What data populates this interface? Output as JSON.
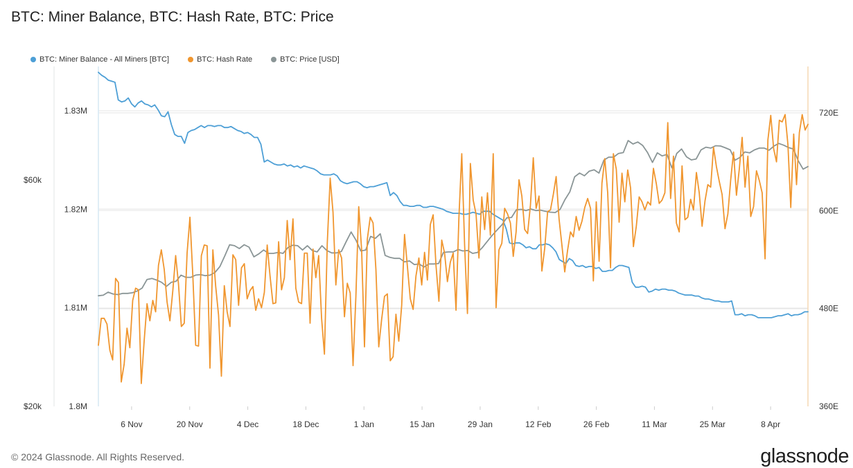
{
  "title": "BTC: Miner Balance, BTC: Hash Rate, BTC: Price",
  "footer": {
    "copyright": "© 2024 Glassnode. All Rights Reserved.",
    "brand": "glassnode"
  },
  "colors": {
    "miner_balance": "#4d9fd6",
    "hash_rate": "#f0962f",
    "price": "#8a9596",
    "grid": "#e6e6e6",
    "axis_text": "#333333"
  },
  "chart_data": {
    "type": "line",
    "title": "BTC: Miner Balance, BTC: Hash Rate, BTC: Price",
    "x_ticks": [
      "6 Nov",
      "20 Nov",
      "4 Dec",
      "18 Dec",
      "1 Jan",
      "15 Jan",
      "29 Jan",
      "12 Feb",
      "26 Feb",
      "11 Mar",
      "25 Mar",
      "8 Apr"
    ],
    "x_range": [
      "2023-10-29",
      "2024-04-17"
    ],
    "axes": {
      "balance": {
        "side": "left-inner",
        "ticks": [
          "1.8M",
          "1.81M",
          "1.82M",
          "1.83M"
        ],
        "ylim": [
          1.8,
          1.8345
        ],
        "unit": "M BTC"
      },
      "price": {
        "side": "left-outer",
        "scale": "log",
        "ticks": [
          "$20k",
          "$60k"
        ],
        "ylim": [
          20000,
          104000
        ]
      },
      "hash_rate": {
        "side": "right",
        "ticks": [
          "360E",
          "480E",
          "600E",
          "720E"
        ],
        "ylim": [
          360,
          777
        ]
      }
    },
    "legend_position": "top-left",
    "series": [
      {
        "name": "BTC: Miner Balance - All Miners [BTC]",
        "key": "miner_balance",
        "axis": "balance",
        "values": [
          1.8339,
          1.8336,
          1.8334,
          1.8331,
          1.833,
          1.8329,
          1.8311,
          1.8309,
          1.831,
          1.8313,
          1.8307,
          1.8304,
          1.8308,
          1.831,
          1.8307,
          1.8306,
          1.8304,
          1.8306,
          1.8301,
          1.8295,
          1.8294,
          1.8299,
          1.8286,
          1.8276,
          1.8274,
          1.8274,
          1.8267,
          1.8278,
          1.828,
          1.8281,
          1.8283,
          1.8285,
          1.8283,
          1.8285,
          1.8285,
          1.8284,
          1.8285,
          1.8285,
          1.8283,
          1.8283,
          1.8284,
          1.8282,
          1.828,
          1.8279,
          1.8277,
          1.8278,
          1.8276,
          1.8273,
          1.8273,
          1.8266,
          1.8248,
          1.825,
          1.8248,
          1.8246,
          1.8245,
          1.8245,
          1.8246,
          1.8244,
          1.8245,
          1.8243,
          1.8244,
          1.8242,
          1.8244,
          1.8243,
          1.8242,
          1.8241,
          1.8239,
          1.8236,
          1.8235,
          1.8235,
          1.8235,
          1.8236,
          1.8234,
          1.8229,
          1.8227,
          1.8226,
          1.8227,
          1.8228,
          1.8228,
          1.8226,
          1.8223,
          1.8222,
          1.8223,
          1.8223,
          1.8224,
          1.8225,
          1.8226,
          1.8227,
          1.8214,
          1.8217,
          1.8214,
          1.8208,
          1.8204,
          1.8204,
          1.8203,
          1.8203,
          1.8204,
          1.8204,
          1.8202,
          1.8202,
          1.8203,
          1.8203,
          1.8202,
          1.8201,
          1.82,
          1.8198,
          1.8197,
          1.8196,
          1.8196,
          1.8196,
          1.8195,
          1.8195,
          1.8196,
          1.8197,
          1.8196,
          1.8195,
          1.8198,
          1.8198,
          1.8198,
          1.8195,
          1.8193,
          1.8191,
          1.8189,
          1.818,
          1.8166,
          1.8165,
          1.8166,
          1.8166,
          1.8164,
          1.8161,
          1.8162,
          1.816,
          1.816,
          1.8164,
          1.8164,
          1.8165,
          1.8164,
          1.8161,
          1.8157,
          1.8149,
          1.8147,
          1.8145,
          1.815,
          1.8148,
          1.8143,
          1.8142,
          1.8143,
          1.8141,
          1.8142,
          1.8142,
          1.814,
          1.8141,
          1.8137,
          1.8137,
          1.8138,
          1.8138,
          1.8141,
          1.8143,
          1.8143,
          1.8142,
          1.8141,
          1.8126,
          1.8121,
          1.8121,
          1.8122,
          1.8121,
          1.8116,
          1.8117,
          1.8119,
          1.8118,
          1.8119,
          1.8119,
          1.8118,
          1.8118,
          1.8117,
          1.8115,
          1.8114,
          1.8113,
          1.8113,
          1.8113,
          1.8112,
          1.8112,
          1.811,
          1.8109,
          1.8109,
          1.8108,
          1.8107,
          1.8107,
          1.8106,
          1.8106,
          1.8106,
          1.8107,
          1.8093,
          1.8093,
          1.8094,
          1.8092,
          1.8093,
          1.8093,
          1.8092,
          1.809,
          1.809,
          1.809,
          1.809,
          1.809,
          1.8091,
          1.8092,
          1.8092,
          1.8093,
          1.8094,
          1.8092,
          1.8093,
          1.8093,
          1.8094,
          1.8096,
          1.8096
        ]
      },
      {
        "name": "BTC: Hash Rate",
        "key": "hash_rate",
        "axis": "hash_rate",
        "values": [
          435,
          468,
          468,
          461,
          429,
          417,
          517,
          512,
          390,
          412,
          456,
          432,
          490,
          505,
          503,
          388,
          441,
          486,
          465,
          490,
          476,
          533,
          552,
          528,
          488,
          465,
          502,
          545,
          510,
          458,
          462,
          548,
          592,
          520,
          435,
          434,
          545,
          558,
          557,
          407,
          552,
          507,
          472,
          397,
          508,
          476,
          458,
          546,
          540,
          484,
          530,
          535,
          492,
          502,
          507,
          478,
          492,
          481,
          500,
          558,
          520,
          486,
          487,
          562,
          503,
          518,
          588,
          540,
          590,
          505,
          488,
          486,
          548,
          548,
          462,
          553,
          518,
          545,
          468,
          424,
          560,
          640,
          598,
          509,
          552,
          542,
          470,
          511,
          499,
          410,
          495,
          605,
          552,
          433,
          565,
          592,
          585,
          528,
          433,
          467,
          495,
          498,
          416,
          421,
          473,
          440,
          484,
          571,
          532,
          492,
          479,
          520,
          542,
          509,
          549,
          515,
          583,
          595,
          533,
          489,
          564,
          548,
          513,
          537,
          548,
          478,
          592,
          670,
          558,
          474,
          658,
          613,
          596,
          542,
          617,
          577,
          622,
          570,
          670,
          481,
          552,
          560,
          603,
          596,
          585,
          544,
          574,
          638,
          618,
          577,
          572,
          607,
          665,
          603,
          618,
          526,
          554,
          599,
          601,
          620,
          642,
          590,
          558,
          525,
          552,
          574,
          568,
          593,
          576,
          587,
          604,
          615,
          603,
          514,
          611,
          538,
          634,
          664,
          622,
          530,
          670,
          651,
          586,
          646,
          611,
          650,
          628,
          556,
          581,
          617,
          611,
          601,
          611,
          607,
          652,
          633,
          609,
          613,
          622,
          708,
          615,
          667,
          585,
          574,
          655,
          589,
          592,
          614,
          601,
          647,
          622,
          581,
          612,
          632,
          629,
          678,
          654,
          636,
          620,
          578,
          596,
          638,
          672,
          619,
          651,
          690,
          629,
          667,
          593,
          605,
          649,
          637,
          622,
          541,
          687,
          717,
          676,
          660,
          711,
          709,
          718,
          681,
          604,
          694,
          632,
          696,
          718,
          699,
          706
        ]
      },
      {
        "name": "BTC: Price [USD]",
        "key": "price",
        "axis": "price",
        "values": [
          34200,
          34300,
          34800,
          34500,
          34400,
          34600,
          34600,
          34700,
          35000,
          35500,
          37000,
          37200,
          36900,
          36500,
          35800,
          36500,
          36700,
          37800,
          37400,
          37400,
          37800,
          37900,
          37700,
          37800,
          38300,
          39400,
          41500,
          43800,
          43600,
          43000,
          43800,
          43300,
          41300,
          41900,
          42700,
          42000,
          42000,
          42200,
          42000,
          43200,
          43700,
          43600,
          42700,
          43600,
          42600,
          42300,
          43600,
          42600,
          42100,
          42100,
          42400,
          44500,
          46600,
          44800,
          42500,
          42700,
          45600,
          45200,
          46200,
          41600,
          41200,
          41000,
          41000,
          40300,
          40500,
          39800,
          39900,
          39300,
          39900,
          39900,
          40000,
          42200,
          42300,
          42300,
          42800,
          42500,
          42600,
          42000,
          42200,
          43200,
          44500,
          45800,
          47000,
          48200,
          49900,
          50000,
          51900,
          52000,
          51700,
          52100,
          51700,
          51800,
          51500,
          51300,
          51200,
          52000,
          54500,
          56600,
          60900,
          62000,
          61200,
          62600,
          63000,
          62000,
          66000,
          67000,
          67000,
          68200,
          68500,
          72600,
          71400,
          72100,
          70900,
          68500,
          65300,
          68400,
          67400,
          67900,
          63600,
          68200,
          69700,
          67100,
          66100,
          66400,
          69400,
          70300,
          70000,
          70800,
          70700,
          70100,
          69400,
          66000,
          66900,
          68700,
          68400,
          69400,
          70000,
          70000,
          69300,
          70700,
          71600,
          71000,
          70200,
          69700,
          65800,
          63200,
          64000
        ]
      }
    ]
  }
}
